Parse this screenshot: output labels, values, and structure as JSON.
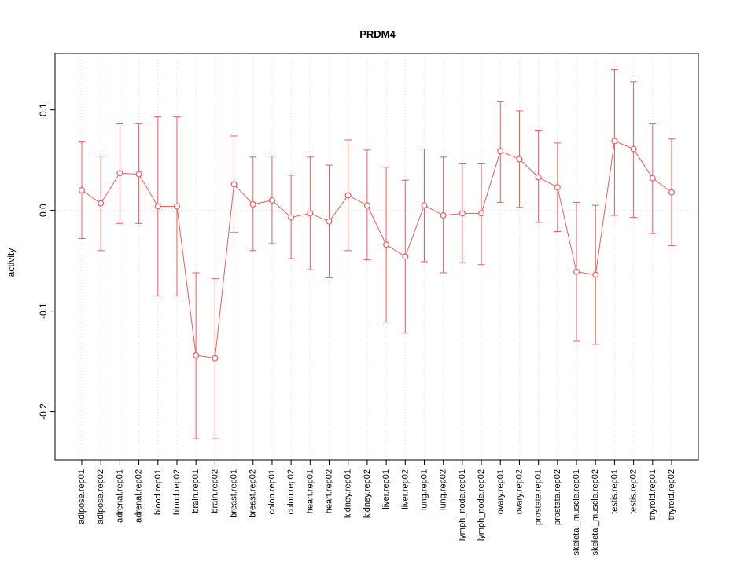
{
  "chart_data": {
    "type": "line",
    "title": "PRDM4",
    "xlabel": "",
    "ylabel": "activity",
    "ylim": [
      -0.248,
      0.156
    ],
    "ytick_values": [
      0.1,
      0.0,
      -0.1,
      -0.2
    ],
    "ytick_labels": [
      "0.1",
      "0.0",
      "-0.1",
      "-0.2"
    ],
    "grid": "dotted-vertical-per-category-plus-zero-line",
    "legend": "none",
    "marker": "open-circle",
    "error_bars": true,
    "colors": {
      "series": "#ee5c5c",
      "grid": "#d9d9d9",
      "zero_line": "#d9d9d9",
      "axis": "#000000",
      "background": "#ffffff"
    },
    "categories": [
      "adipose.rep01",
      "adipose.rep02",
      "adrenal.rep01",
      "adrenal.rep02",
      "blood.rep01",
      "blood.rep02",
      "brain.rep01",
      "brain.rep02",
      "breast.rep01",
      "breast.rep02",
      "colon.rep01",
      "colon.rep02",
      "heart.rep01",
      "heart.rep02",
      "kidney.rep01",
      "kidney.rep02",
      "liver.rep01",
      "liver.rep02",
      "lung.rep01",
      "lung.rep02",
      "lymph_node.rep01",
      "lymph_node.rep02",
      "ovary.rep01",
      "ovary.rep02",
      "prostate.rep01",
      "prostate.rep02",
      "skeletal_muscle.rep01",
      "skeletal_muscle.rep02",
      "testis.rep01",
      "testis.rep02",
      "thyroid.rep01",
      "thyroid.rep02"
    ],
    "series": [
      {
        "name": "activity",
        "values": [
          0.02,
          0.007,
          0.037,
          0.036,
          0.004,
          0.004,
          -0.144,
          -0.147,
          0.026,
          0.006,
          0.01,
          -0.007,
          -0.003,
          -0.011,
          0.015,
          0.005,
          -0.034,
          -0.046,
          0.005,
          -0.005,
          -0.003,
          -0.003,
          0.059,
          0.051,
          0.033,
          0.023,
          -0.061,
          -0.064,
          0.069,
          0.061,
          0.032,
          0.018
        ],
        "upper": [
          0.068,
          0.054,
          0.086,
          0.086,
          0.093,
          0.093,
          -0.062,
          -0.068,
          0.074,
          0.053,
          0.054,
          0.035,
          0.053,
          0.045,
          0.07,
          0.06,
          0.043,
          0.03,
          0.061,
          0.053,
          0.047,
          0.047,
          0.108,
          0.099,
          0.079,
          0.067,
          0.008,
          0.005,
          0.14,
          0.128,
          0.086,
          0.071
        ],
        "lower": [
          -0.028,
          -0.04,
          -0.013,
          -0.013,
          -0.085,
          -0.085,
          -0.227,
          -0.227,
          -0.022,
          -0.04,
          -0.033,
          -0.048,
          -0.059,
          -0.067,
          -0.04,
          -0.049,
          -0.111,
          -0.122,
          -0.051,
          -0.062,
          -0.052,
          -0.054,
          0.008,
          0.003,
          -0.012,
          -0.021,
          -0.13,
          -0.133,
          -0.005,
          -0.007,
          -0.023,
          -0.035
        ]
      }
    ]
  }
}
